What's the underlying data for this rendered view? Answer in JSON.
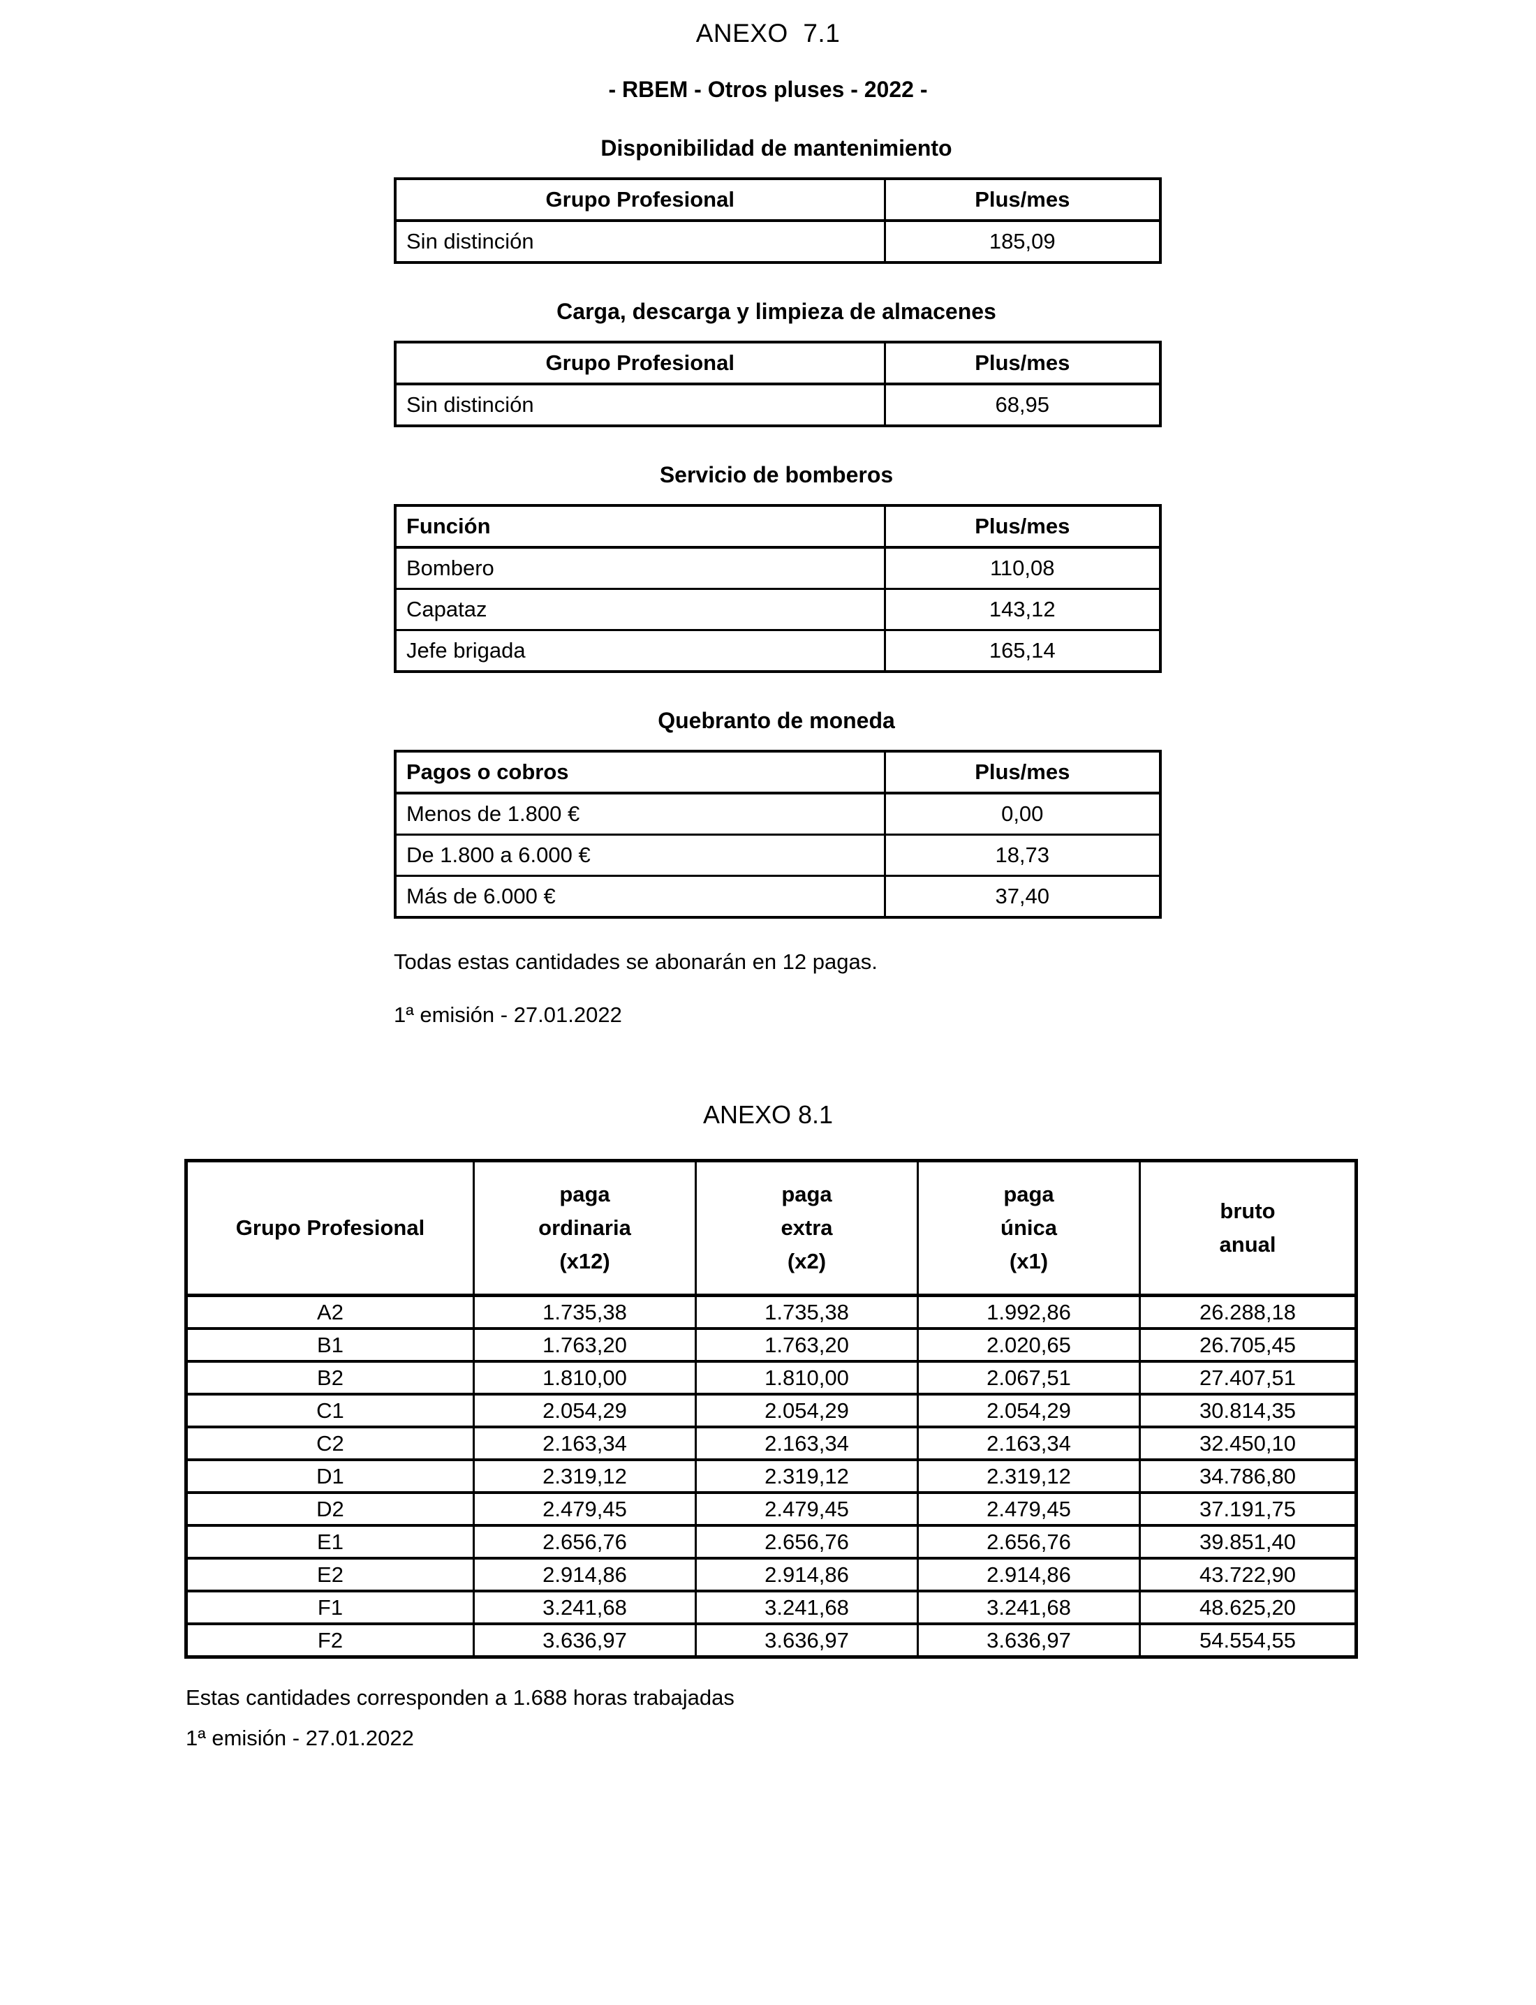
{
  "anexo7": {
    "title": "ANEXO  7.1",
    "subtitle": "- RBEM - Otros pluses - 2022 -",
    "sections": [
      {
        "heading": "Disponibilidad de mantenimiento",
        "col1": "Grupo Profesional",
        "col2": "Plus/mes",
        "rows": [
          [
            "Sin distinción",
            "185,09"
          ]
        ]
      },
      {
        "heading": "Carga, descarga y limpieza de almacenes",
        "col1": "Grupo Profesional",
        "col2": "Plus/mes",
        "rows": [
          [
            "Sin distinción",
            "68,95"
          ]
        ]
      },
      {
        "heading": "Servicio de bomberos",
        "col1": "Función",
        "col2": "Plus/mes",
        "rows": [
          [
            "Bombero",
            "110,08"
          ],
          [
            "Capataz",
            "143,12"
          ],
          [
            "Jefe brigada",
            "165,14"
          ]
        ]
      },
      {
        "heading": "Quebranto de moneda",
        "col1": "Pagos o cobros",
        "col2": "Plus/mes",
        "rows": [
          [
            "Menos de 1.800 €",
            "0,00"
          ],
          [
            "De 1.800 a 6.000 €",
            "18,73"
          ],
          [
            "Más de 6.000 €",
            "37,40"
          ]
        ]
      }
    ],
    "note": "Todas estas cantidades se abonarán en 12 pagas.",
    "emission": "1ª emisión - 27.01.2022"
  },
  "anexo8": {
    "title": "ANEXO 8.1",
    "table": {
      "headers": [
        [
          "Grupo Profesional"
        ],
        [
          "paga",
          "ordinaria",
          "(x12)"
        ],
        [
          "paga",
          "extra",
          "(x2)"
        ],
        [
          "paga",
          "única",
          "(x1)"
        ],
        [
          "bruto",
          "anual"
        ]
      ],
      "rows": [
        [
          "A2",
          "1.735,38",
          "1.735,38",
          "1.992,86",
          "26.288,18"
        ],
        [
          "B1",
          "1.763,20",
          "1.763,20",
          "2.020,65",
          "26.705,45"
        ],
        [
          "B2",
          "1.810,00",
          "1.810,00",
          "2.067,51",
          "27.407,51"
        ],
        [
          "C1",
          "2.054,29",
          "2.054,29",
          "2.054,29",
          "30.814,35"
        ],
        [
          "C2",
          "2.163,34",
          "2.163,34",
          "2.163,34",
          "32.450,10"
        ],
        [
          "D1",
          "2.319,12",
          "2.319,12",
          "2.319,12",
          "34.786,80"
        ],
        [
          "D2",
          "2.479,45",
          "2.479,45",
          "2.479,45",
          "37.191,75"
        ],
        [
          "E1",
          "2.656,76",
          "2.656,76",
          "2.656,76",
          "39.851,40"
        ],
        [
          "E2",
          "2.914,86",
          "2.914,86",
          "2.914,86",
          "43.722,90"
        ],
        [
          "F1",
          "3.241,68",
          "3.241,68",
          "3.241,68",
          "48.625,20"
        ],
        [
          "F2",
          "3.636,97",
          "3.636,97",
          "3.636,97",
          "54.554,55"
        ]
      ]
    },
    "note": "Estas cantidades corresponden a 1.688 horas trabajadas",
    "emission": "1ª emisión - 27.01.2022"
  }
}
